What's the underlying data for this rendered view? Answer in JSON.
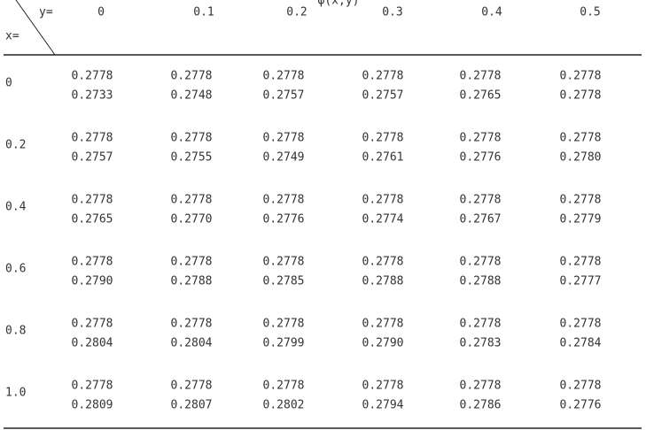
{
  "table": {
    "title": "φ(x,y)",
    "corner_y": "y=",
    "corner_x": "x=",
    "columns": [
      "0",
      "0.1",
      "0.2",
      "0.3",
      "0.4",
      "0.5"
    ],
    "rows": [
      {
        "x": "0",
        "values": [
          [
            "0.2778",
            "0.2733"
          ],
          [
            "0.2778",
            "0.2748"
          ],
          [
            "0.2778",
            "0.2757"
          ],
          [
            "0.2778",
            "0.2757"
          ],
          [
            "0.2778",
            "0.2765"
          ],
          [
            "0.2778",
            "0.2778"
          ]
        ]
      },
      {
        "x": "0.2",
        "values": [
          [
            "0.2778",
            "0.2757"
          ],
          [
            "0.2778",
            "0.2755"
          ],
          [
            "0.2778",
            "0.2749"
          ],
          [
            "0.2778",
            "0.2761"
          ],
          [
            "0.2778",
            "0.2776"
          ],
          [
            "0.2778",
            "0.2780"
          ]
        ]
      },
      {
        "x": "0.4",
        "values": [
          [
            "0.2778",
            "0.2765"
          ],
          [
            "0.2778",
            "0.2770"
          ],
          [
            "0.2778",
            "0.2776"
          ],
          [
            "0.2778",
            "0.2774"
          ],
          [
            "0.2778",
            "0.2767"
          ],
          [
            "0.2778",
            "0.2779"
          ]
        ]
      },
      {
        "x": "0.6",
        "values": [
          [
            "0.2778",
            "0.2790"
          ],
          [
            "0.2778",
            "0.2788"
          ],
          [
            "0.2778",
            "0.2785"
          ],
          [
            "0.2778",
            "0.2788"
          ],
          [
            "0.2778",
            "0.2788"
          ],
          [
            "0.2778",
            "0.2777"
          ]
        ]
      },
      {
        "x": "0.8",
        "values": [
          [
            "0.2778",
            "0.2804"
          ],
          [
            "0.2778",
            "0.2804"
          ],
          [
            "0.2778",
            "0.2799"
          ],
          [
            "0.2778",
            "0.2790"
          ],
          [
            "0.2778",
            "0.2783"
          ],
          [
            "0.2778",
            "0.2784"
          ]
        ]
      },
      {
        "x": "1.0",
        "values": [
          [
            "0.2778",
            "0.2809"
          ],
          [
            "0.2778",
            "0.2807"
          ],
          [
            "0.2778",
            "0.2802"
          ],
          [
            "0.2778",
            "0.2794"
          ],
          [
            "0.2778",
            "0.2786"
          ],
          [
            "0.2778",
            "0.2776"
          ]
        ]
      }
    ]
  }
}
